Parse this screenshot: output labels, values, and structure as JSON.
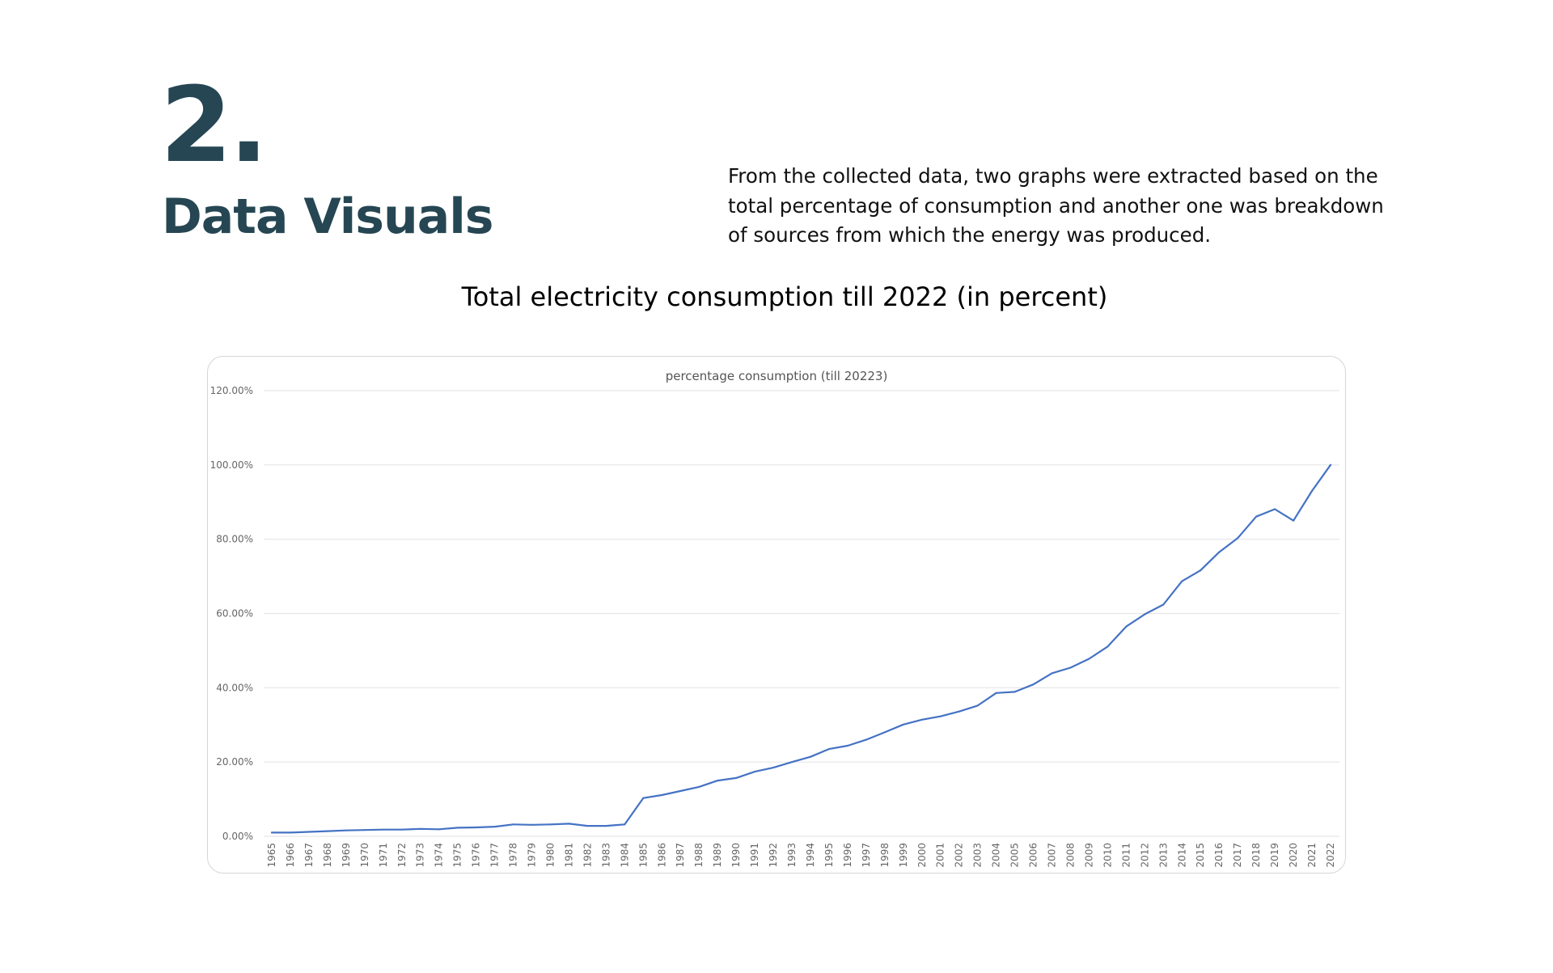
{
  "header": {
    "section_number": "2.",
    "section_title": "Data Visuals",
    "intro_text": "From the collected data, two graphs were extracted based on the total percentage of consumption and another one was breakdown of sources from which the energy was produced."
  },
  "chart_heading": "Total electricity consumption till 2022 (in percent)",
  "colors": {
    "heading": "#264653",
    "line": "#4472c4",
    "grid": "#e6e6e6"
  },
  "chart_data": {
    "type": "line",
    "title": "percentage consumption (till 20223)",
    "xlabel": "",
    "ylabel": "",
    "ylim": [
      0,
      120
    ],
    "yticks": [
      "0.00%",
      "20.00%",
      "40.00%",
      "60.00%",
      "80.00%",
      "100.00%",
      "120.00%"
    ],
    "ytick_values": [
      0,
      20,
      40,
      60,
      80,
      100,
      120
    ],
    "grid": true,
    "legend": "none",
    "x": [
      "1965",
      "1966",
      "1967",
      "1968",
      "1969",
      "1970",
      "1971",
      "1972",
      "1973",
      "1974",
      "1975",
      "1976",
      "1977",
      "1978",
      "1979",
      "1980",
      "1981",
      "1982",
      "1983",
      "1984",
      "1985",
      "1986",
      "1987",
      "1988",
      "1989",
      "1990",
      "1991",
      "1992",
      "1993",
      "1994",
      "1995",
      "1996",
      "1997",
      "1998",
      "1999",
      "2000",
      "2001",
      "2002",
      "2003",
      "2004",
      "2005",
      "2006",
      "2007",
      "2008",
      "2009",
      "2010",
      "2011",
      "2012",
      "2013",
      "2014",
      "2015",
      "2016",
      "2017",
      "2018",
      "2019",
      "2020",
      "2021",
      "2022"
    ],
    "series": [
      {
        "name": "percentage consumption",
        "values": [
          1.0,
          1.0,
          1.2,
          1.4,
          1.6,
          1.7,
          1.8,
          1.8,
          2.0,
          1.9,
          2.3,
          2.4,
          2.6,
          3.2,
          3.1,
          3.2,
          3.4,
          2.8,
          2.8,
          3.2,
          10.3,
          11.1,
          12.2,
          13.3,
          15.0,
          15.7,
          17.4,
          18.5,
          20.0,
          21.4,
          23.5,
          24.4,
          26.0,
          28.0,
          30.1,
          31.4,
          32.3,
          33.6,
          35.2,
          38.6,
          38.9,
          40.9,
          43.9,
          45.4,
          47.8,
          51.1,
          56.5,
          59.8,
          62.4,
          68.7,
          71.6,
          76.5,
          80.3,
          86.1,
          88.1,
          85.0,
          93.0,
          100.0
        ]
      }
    ]
  }
}
